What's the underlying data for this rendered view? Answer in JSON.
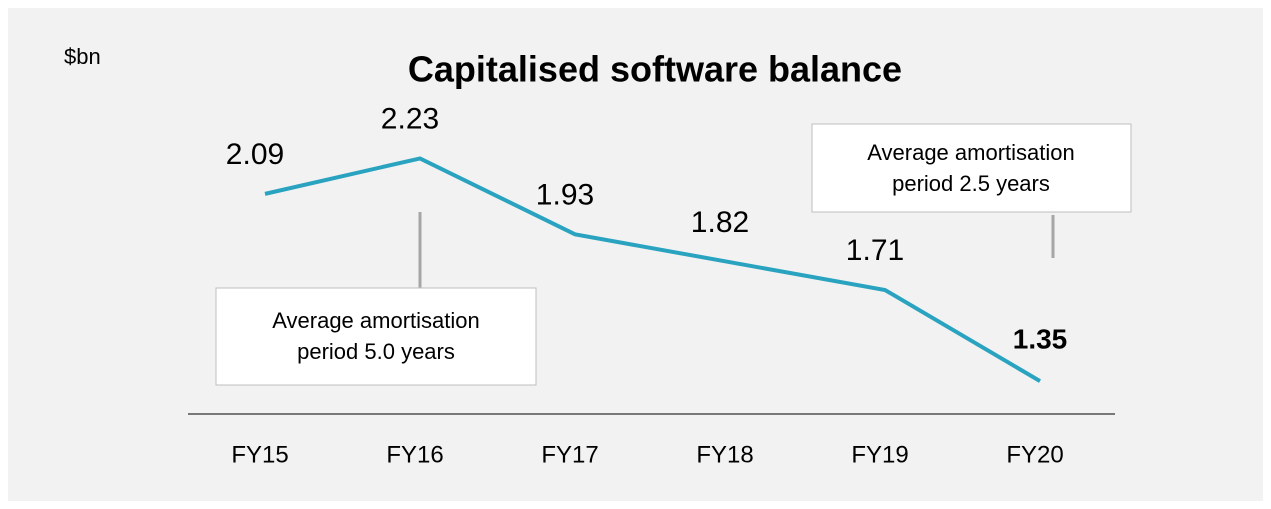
{
  "chart_data": {
    "type": "line",
    "title": "Capitalised software balance",
    "ylabel": "$bn",
    "categories": [
      "FY15",
      "FY16",
      "FY17",
      "FY18",
      "FY19",
      "FY20"
    ],
    "series": [
      {
        "name": "Capitalised software balance",
        "color": "#2aa3c0",
        "values": [
          2.09,
          2.23,
          1.93,
          1.82,
          1.71,
          1.35
        ]
      }
    ],
    "ylim": [
      1.22,
      2.54
    ],
    "bold_last_label": true,
    "annotations": [
      {
        "lines": [
          "Average amortisation",
          "period 5.0 years"
        ]
      },
      {
        "lines": [
          "Average amortisation",
          "period 2.5 years"
        ]
      }
    ]
  }
}
